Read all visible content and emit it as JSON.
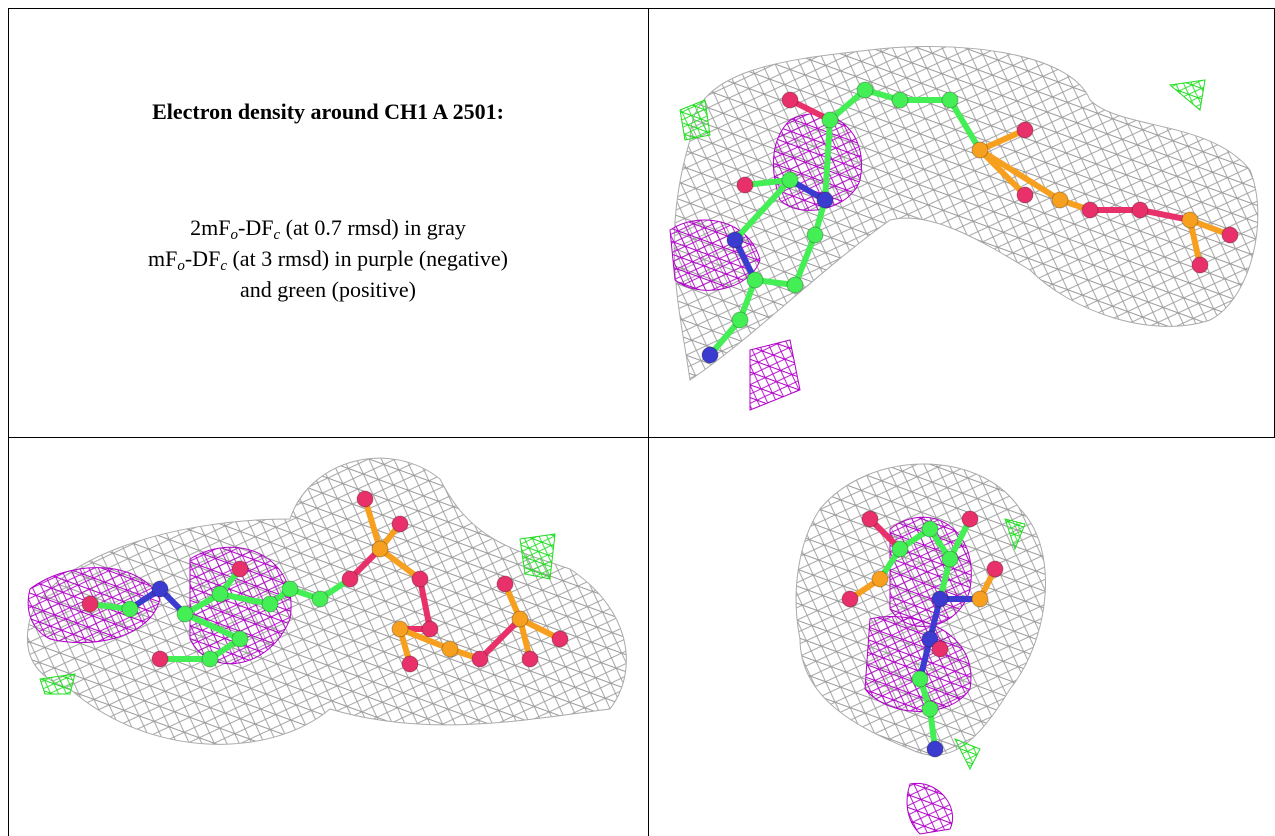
{
  "cells": {
    "top_left": {
      "title": "Electron density around CH1 A 2501:",
      "line1": [
        "2mF",
        "o",
        "-DF",
        "c",
        " (at 0.7 rmsd) in gray"
      ],
      "line2": [
        "mF",
        "o",
        "-DF",
        "c",
        " (at 3 rmsd) in purple (negative)"
      ],
      "line3": "and green (positive)"
    }
  }
}
